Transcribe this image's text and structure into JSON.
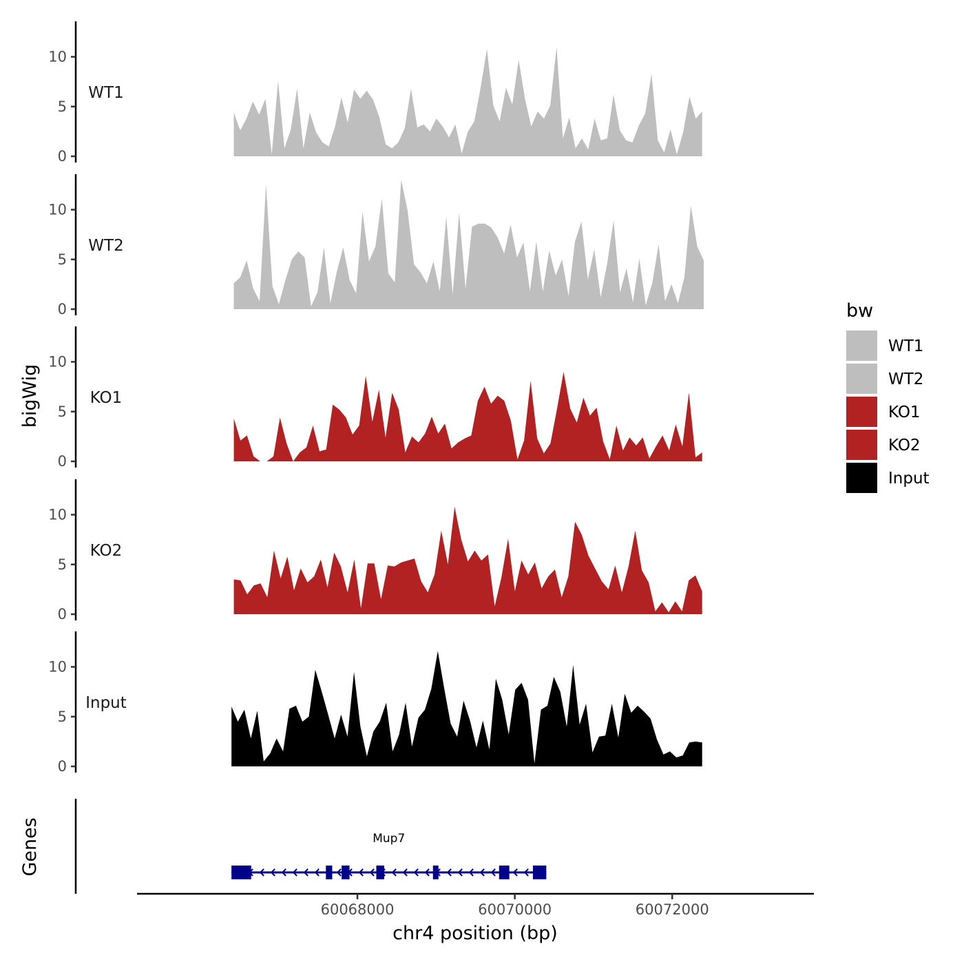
{
  "chart_data": {
    "type": "area",
    "region": "chr4",
    "xlabel": "chr4 position (bp)",
    "ylabel": "bigWig",
    "genes_label": "Genes",
    "xlim": [
      60065200,
      60073800
    ],
    "x_ticks": [
      60068000,
      60070000,
      60072000
    ],
    "x_tick_labels": [
      "60068000",
      "60070000",
      "60072000"
    ],
    "ylim": [
      0,
      13.5
    ],
    "y_ticks": [
      0,
      5,
      10
    ],
    "y_tick_labels": [
      "0",
      "5",
      "10"
    ],
    "legend": {
      "title": "bw",
      "entries": [
        {
          "label": "WT1",
          "color": "#bebebe"
        },
        {
          "label": "WT2",
          "color": "#bebebe"
        },
        {
          "label": "KO1",
          "color": "#b22222"
        },
        {
          "label": "KO2",
          "color": "#b22222"
        },
        {
          "label": "Input",
          "color": "#000000"
        }
      ]
    },
    "tracks": [
      {
        "name": "WT1",
        "color": "#bebebe",
        "x_start": 60066430,
        "x_end": 60072380,
        "values": [
          4.4,
          2.6,
          3.8,
          5.5,
          4.2,
          5.8,
          0.2,
          7.6,
          0.8,
          2.7,
          6.8,
          0.8,
          4.4,
          2.4,
          1.4,
          1.0,
          3.0,
          5.9,
          3.4,
          6.7,
          5.8,
          6.6,
          5.7,
          3.9,
          1.2,
          0.8,
          1.4,
          2.8,
          6.8,
          2.9,
          3.2,
          2.5,
          3.8,
          3.0,
          1.9,
          3.2,
          0.3,
          2.5,
          3.5,
          6.9,
          10.8,
          5.1,
          3.5,
          6.9,
          5.2,
          9.7,
          5.8,
          3.0,
          4.5,
          3.8,
          5.1,
          11.0,
          1.8,
          3.9,
          0.8,
          1.8,
          0.7,
          3.8,
          1.6,
          1.8,
          6.2,
          2.6,
          1.6,
          1.4,
          3.1,
          4.3,
          8.3,
          1.6,
          0.4,
          2.7,
          0.2,
          2.4,
          6.0,
          3.8,
          4.5
        ]
      },
      {
        "name": "WT2",
        "color": "#bebebe",
        "x_start": 60066430,
        "x_end": 60072400,
        "values": [
          2.6,
          3.2,
          4.9,
          2.1,
          0.8,
          12.5,
          2.3,
          0.5,
          2.9,
          5.0,
          5.8,
          5.2,
          0.3,
          1.7,
          6.2,
          0.6,
          3.8,
          6.2,
          2.9,
          1.6,
          9.8,
          4.8,
          6.3,
          11.1,
          3.6,
          2.7,
          13.0,
          9.9,
          4.5,
          3.7,
          2.6,
          4.8,
          1.8,
          9.3,
          1.5,
          9.7,
          2.1,
          8.3,
          8.6,
          8.6,
          8.2,
          7.2,
          5.6,
          8.5,
          5.2,
          6.7,
          1.8,
          6.8,
          1.8,
          5.9,
          3.4,
          5.0,
          1.3,
          6.8,
          8.8,
          3.0,
          6.0,
          1.2,
          4.6,
          8.9,
          1.7,
          4.1,
          0.7,
          5.1,
          0.4,
          2.6,
          6.5,
          0.8,
          2.5,
          0.6,
          3.2,
          10.4,
          6.3,
          4.9
        ]
      },
      {
        "name": "KO1",
        "color": "#b22222",
        "x_start": 60066430,
        "x_end": 60072380,
        "values": [
          4.3,
          2.1,
          2.6,
          0.5,
          0.0,
          0.0,
          0.5,
          4.4,
          1.8,
          0.0,
          0.9,
          1.4,
          3.6,
          1.0,
          1.2,
          5.7,
          5.2,
          4.4,
          2.7,
          3.6,
          8.6,
          4.0,
          7.2,
          2.4,
          6.9,
          5.2,
          0.9,
          2.5,
          1.9,
          2.8,
          4.5,
          2.8,
          3.8,
          1.3,
          1.9,
          2.3,
          2.6,
          6.1,
          7.5,
          5.8,
          6.6,
          6.1,
          4.1,
          0.2,
          2.1,
          8.1,
          2.3,
          0.8,
          1.8,
          5.3,
          9.0,
          5.3,
          3.9,
          6.4,
          4.6,
          5.4,
          2.0,
          0.2,
          3.6,
          1.1,
          2.4,
          1.6,
          2.4,
          0.3,
          1.5,
          2.6,
          1.1,
          3.7,
          1.5,
          6.9,
          0.4,
          0.9
        ]
      },
      {
        "name": "KO2",
        "color": "#b22222",
        "x_start": 60066430,
        "x_end": 60072380,
        "values": [
          3.5,
          3.4,
          2.0,
          2.9,
          3.1,
          1.7,
          6.4,
          3.6,
          5.8,
          2.4,
          4.6,
          3.2,
          3.8,
          5.5,
          2.7,
          6.2,
          4.8,
          2.2,
          5.5,
          0.6,
          5.1,
          5.1,
          1.5,
          4.9,
          4.8,
          5.2,
          5.4,
          5.6,
          3.3,
          2.2,
          4.0,
          8.4,
          5.0,
          10.8,
          7.5,
          5.3,
          6.4,
          5.4,
          6.0,
          0.8,
          3.7,
          7.6,
          2.3,
          5.4,
          4.0,
          5.2,
          2.6,
          3.8,
          4.5,
          1.7,
          3.8,
          9.3,
          8.0,
          5.9,
          4.6,
          3.3,
          2.5,
          4.9,
          2.2,
          4.8,
          8.4,
          4.4,
          3.2,
          0.3,
          1.2,
          0.2,
          1.3,
          0.3,
          3.4,
          3.9,
          2.3
        ]
      },
      {
        "name": "Input",
        "color": "#000000",
        "x_start": 60066400,
        "x_end": 60072380,
        "values": [
          6.0,
          4.5,
          5.7,
          2.8,
          5.6,
          0.5,
          1.3,
          2.8,
          1.5,
          5.8,
          6.1,
          4.5,
          5.0,
          9.7,
          7.5,
          5.2,
          2.8,
          5.2,
          3.0,
          9.5,
          4.0,
          1.0,
          3.5,
          4.5,
          6.4,
          1.5,
          3.2,
          6.4,
          2.0,
          4.9,
          5.7,
          7.8,
          11.6,
          7.8,
          4.3,
          3.0,
          6.6,
          4.6,
          1.9,
          4.6,
          1.7,
          8.8,
          6.7,
          3.2,
          7.7,
          8.4,
          6.7,
          0.3,
          5.7,
          6.1,
          9.0,
          7.5,
          4.0,
          10.2,
          4.2,
          6.3,
          1.4,
          3.0,
          3.1,
          6.3,
          2.9,
          7.3,
          5.4,
          6.1,
          5.5,
          4.8,
          2.7,
          1.2,
          1.5,
          0.9,
          1.1,
          2.4,
          2.5,
          2.4
        ]
      }
    ],
    "gene": {
      "name": "Mup7",
      "color": "#00008b",
      "strand": "-",
      "start": 60066400,
      "end": 60070400,
      "exons": [
        [
          60066400,
          60066650
        ],
        [
          60067600,
          60067680
        ],
        [
          60067800,
          60067900
        ],
        [
          60068240,
          60068340
        ],
        [
          60068960,
          60069030
        ],
        [
          60069800,
          60069930
        ],
        [
          60070230,
          60070400
        ]
      ]
    }
  }
}
